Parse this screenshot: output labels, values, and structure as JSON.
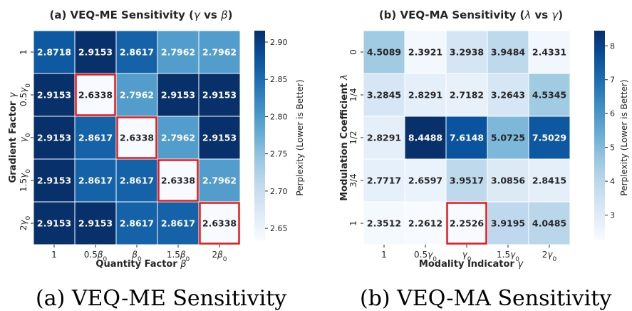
{
  "chart_data": [
    {
      "type": "heatmap",
      "title_prefix": "(a) VEQ-ME Sensitivity (",
      "title_sym1": "γ",
      "title_mid": " vs ",
      "title_sym2": "β",
      "title_suffix": ")",
      "xlabel_text": "Quantity Factor ",
      "xlabel_sym": "β",
      "ylabel_text": "Gradient Factor ",
      "ylabel_sym": "γ",
      "x_ticks": [
        {
          "pre": "1",
          "sym": "",
          "sub": ""
        },
        {
          "pre": "0.5",
          "sym": "β",
          "sub": "0"
        },
        {
          "pre": "",
          "sym": "β",
          "sub": "0"
        },
        {
          "pre": "1.5",
          "sym": "β",
          "sub": "0"
        },
        {
          "pre": "2",
          "sym": "β",
          "sub": "0"
        }
      ],
      "y_ticks": [
        {
          "pre": "1",
          "sym": "",
          "sub": ""
        },
        {
          "pre": "0.5",
          "sym": "γ",
          "sub": "0"
        },
        {
          "pre": "",
          "sym": "γ",
          "sub": "0"
        },
        {
          "pre": "1.5",
          "sym": "γ",
          "sub": "0"
        },
        {
          "pre": "2",
          "sym": "γ",
          "sub": "0"
        }
      ],
      "values": [
        [
          2.8718,
          2.9153,
          2.8617,
          2.7962,
          2.7962
        ],
        [
          2.9153,
          2.6338,
          2.7962,
          2.9153,
          2.9153
        ],
        [
          2.9153,
          2.8617,
          2.6338,
          2.7962,
          2.9153
        ],
        [
          2.9153,
          2.8617,
          2.8617,
          2.6338,
          2.7962
        ],
        [
          2.9153,
          2.9153,
          2.8617,
          2.8617,
          2.6338
        ]
      ],
      "highlighted": [
        [
          1,
          1
        ],
        [
          2,
          2
        ],
        [
          3,
          3
        ],
        [
          4,
          4
        ]
      ],
      "vmin": 2.6338,
      "vmax": 2.9153,
      "colorbar_label": "Perplexity (Lower is Better)",
      "colorbar_ticks": [
        "2.65",
        "2.70",
        "2.75",
        "2.80",
        "2.85",
        "2.90"
      ],
      "caption": "(a) VEQ-ME Sensitivity"
    },
    {
      "type": "heatmap",
      "title_prefix": "(b) VEQ-MA Sensitivity (",
      "title_sym1": "λ",
      "title_mid": " vs ",
      "title_sym2": "γ",
      "title_suffix": ")",
      "xlabel_text": "Modality Indicator ",
      "xlabel_sym": "γ",
      "ylabel_text": "Modulation Coefficient ",
      "ylabel_sym": "λ",
      "x_ticks": [
        {
          "pre": "1",
          "sym": "",
          "sub": ""
        },
        {
          "pre": "0.5",
          "sym": "γ",
          "sub": "0"
        },
        {
          "pre": "",
          "sym": "γ",
          "sub": "0"
        },
        {
          "pre": "1.5",
          "sym": "γ",
          "sub": "0"
        },
        {
          "pre": "2",
          "sym": "γ",
          "sub": "0"
        }
      ],
      "y_ticks": [
        {
          "pre": "0",
          "sym": "",
          "sub": ""
        },
        {
          "pre": "1/4",
          "sym": "",
          "sub": ""
        },
        {
          "pre": "1/2",
          "sym": "",
          "sub": ""
        },
        {
          "pre": "3/4",
          "sym": "",
          "sub": ""
        },
        {
          "pre": "1",
          "sym": "",
          "sub": ""
        }
      ],
      "values": [
        [
          4.5089,
          2.3921,
          3.2938,
          3.9484,
          2.4331
        ],
        [
          3.2845,
          2.8291,
          2.7182,
          3.2643,
          4.5345
        ],
        [
          2.8291,
          8.4488,
          7.6148,
          5.0725,
          7.5029
        ],
        [
          2.7717,
          2.6597,
          3.9517,
          3.0856,
          2.8415
        ],
        [
          2.3512,
          2.2612,
          2.2526,
          3.9195,
          4.0485
        ]
      ],
      "highlighted": [
        [
          4,
          2
        ]
      ],
      "vmin": 2.2526,
      "vmax": 8.4488,
      "colorbar_label": "Perplexity (Lower is Better)",
      "colorbar_ticks": [
        "3",
        "4",
        "5",
        "6",
        "7",
        "8"
      ],
      "caption": "(b) VEQ-MA Sensitivity"
    }
  ]
}
